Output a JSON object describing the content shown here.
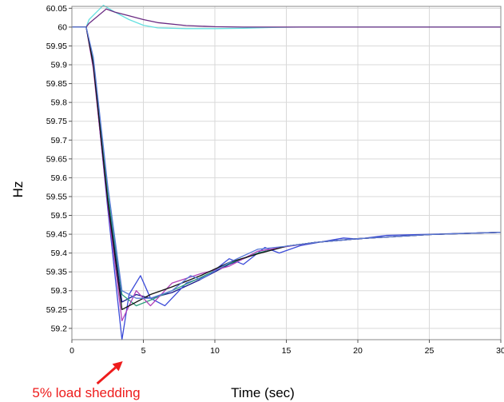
{
  "chart_data": {
    "type": "line",
    "title": "",
    "xlabel": "Time (sec)",
    "ylabel": "Hz",
    "xlim": [
      0,
      30
    ],
    "ylim": [
      59.17,
      60.055
    ],
    "grid": true,
    "x_ticks": [
      "0",
      "5",
      "10",
      "15",
      "20",
      "25",
      "30"
    ],
    "y_ticks": [
      "60.05",
      "60",
      "59.95",
      "59.9",
      "59.85",
      "59.8",
      "59.75",
      "59.7",
      "59.65",
      "59.6",
      "59.55",
      "59.5",
      "59.45",
      "59.4",
      "59.35",
      "59.3",
      "59.25",
      "59.2"
    ],
    "series": [
      {
        "color": "#66e0e0",
        "x": [
          0,
          1,
          1.2,
          2.2,
          3,
          4,
          5,
          6,
          8,
          10,
          12,
          14,
          16,
          20,
          25,
          30
        ],
        "y": [
          60.0,
          60.0,
          60.02,
          60.058,
          60.04,
          60.02,
          60.005,
          59.998,
          59.996,
          59.996,
          59.997,
          59.999,
          60.0,
          60.0,
          60.0,
          60.0
        ]
      },
      {
        "color": "#6a2a82",
        "x": [
          0,
          1,
          1.2,
          2.4,
          3,
          4,
          5,
          6,
          8,
          10,
          12,
          14,
          16,
          20,
          25,
          30
        ],
        "y": [
          60.0,
          60.0,
          60.01,
          60.048,
          60.04,
          60.03,
          60.02,
          60.012,
          60.004,
          60.001,
          60.0,
          60.0,
          60.0,
          60.0,
          60.0,
          60.0
        ]
      },
      {
        "color": "#1a1a8c",
        "x": [
          0,
          1,
          1.5,
          2.5,
          3.5,
          4.5,
          5.5,
          7,
          9,
          11,
          13,
          15,
          17,
          20,
          25,
          30
        ],
        "y": [
          60.0,
          60.0,
          59.9,
          59.55,
          59.27,
          59.29,
          59.28,
          59.295,
          59.33,
          59.37,
          59.4,
          59.418,
          59.428,
          59.438,
          59.449,
          59.455
        ]
      },
      {
        "color": "#3a4ad8",
        "x": [
          0,
          1,
          1.5,
          2.5,
          3.5,
          4,
          4.8,
          5.5,
          6.5,
          8,
          9.5,
          11,
          12,
          13.5,
          14.5,
          16,
          19,
          20,
          22,
          25,
          30
        ],
        "y": [
          60.0,
          60.0,
          59.9,
          59.52,
          59.17,
          59.29,
          59.34,
          59.28,
          59.26,
          59.32,
          59.34,
          59.385,
          59.37,
          59.415,
          59.4,
          59.42,
          59.44,
          59.437,
          59.447,
          59.45,
          59.455
        ]
      },
      {
        "color": "#2c9e7a",
        "x": [
          0,
          1,
          1.5,
          2.5,
          3.5,
          4.5,
          5.5,
          7,
          9,
          11,
          13,
          15,
          17,
          20,
          25,
          30
        ],
        "y": [
          60.0,
          60.0,
          59.91,
          59.56,
          59.29,
          59.26,
          59.275,
          59.3,
          59.335,
          59.372,
          59.4,
          59.418,
          59.428,
          59.438,
          59.449,
          59.455
        ]
      },
      {
        "color": "#b040b8",
        "x": [
          0,
          1,
          1.5,
          2.5,
          3.5,
          4.5,
          5.5,
          7,
          9,
          11,
          13,
          15,
          17,
          20,
          25,
          30
        ],
        "y": [
          60.0,
          60.0,
          59.89,
          59.53,
          59.22,
          59.3,
          59.26,
          59.32,
          59.345,
          59.365,
          59.405,
          59.417,
          59.428,
          59.438,
          59.449,
          59.455
        ]
      },
      {
        "color": "#111111",
        "x": [
          0,
          1,
          1.5,
          2.5,
          3.5,
          4.5,
          5.5,
          7,
          9,
          11,
          13,
          15,
          17,
          20,
          25,
          30
        ],
        "y": [
          60.0,
          60.0,
          59.9,
          59.54,
          59.25,
          59.27,
          59.29,
          59.31,
          59.34,
          59.375,
          59.398,
          59.418,
          59.428,
          59.438,
          59.449,
          59.455
        ]
      },
      {
        "color": "#5a7ad8",
        "x": [
          0,
          1,
          1.5,
          2.5,
          3.5,
          4.5,
          5.5,
          7,
          8.3,
          9,
          11,
          13,
          15,
          17,
          20,
          25,
          30
        ],
        "y": [
          60.0,
          60.0,
          59.92,
          59.58,
          59.3,
          59.28,
          59.28,
          59.3,
          59.34,
          59.33,
          59.375,
          59.41,
          59.418,
          59.428,
          59.438,
          59.449,
          59.455
        ]
      }
    ],
    "annotations": [
      {
        "text": "5% load shedding",
        "color": "#ee1c1c",
        "arrow_to_x": 3.5
      }
    ]
  }
}
